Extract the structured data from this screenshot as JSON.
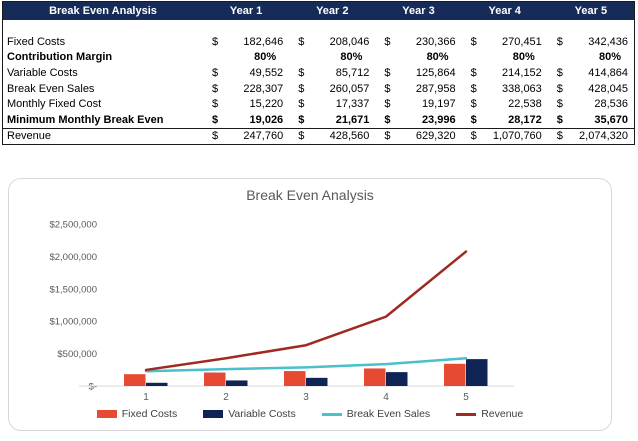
{
  "table": {
    "title": "Break Even Analysis",
    "columns": [
      "Year 1",
      "Year 2",
      "Year 3",
      "Year 4",
      "Year 5"
    ],
    "currency_symbol": "$",
    "rows": [
      {
        "label": "Fixed Costs",
        "format": "currency",
        "bold": false,
        "top_border": false,
        "values": [
          "182,646",
          "208,046",
          "230,366",
          "270,451",
          "342,436"
        ]
      },
      {
        "label": "Contribution Margin",
        "format": "percent",
        "bold": true,
        "top_border": false,
        "values": [
          "80%",
          "80%",
          "80%",
          "80%",
          "80%"
        ]
      },
      {
        "label": "Variable Costs",
        "format": "currency",
        "bold": false,
        "top_border": false,
        "values": [
          "49,552",
          "85,712",
          "125,864",
          "214,152",
          "414,864"
        ]
      },
      {
        "label": "Break Even Sales",
        "format": "currency",
        "bold": false,
        "top_border": false,
        "values": [
          "228,307",
          "260,057",
          "287,958",
          "338,063",
          "428,045"
        ]
      },
      {
        "label": "Monthly Fixed Cost",
        "format": "currency",
        "bold": false,
        "top_border": false,
        "values": [
          "15,220",
          "17,337",
          "19,197",
          "22,538",
          "28,536"
        ]
      },
      {
        "label": "Minimum Monthly Break Even",
        "format": "currency",
        "bold": true,
        "top_border": false,
        "values": [
          "19,026",
          "21,671",
          "23,996",
          "28,172",
          "35,670"
        ]
      },
      {
        "label": "Revenue",
        "format": "currency",
        "bold": false,
        "top_border": true,
        "values": [
          "247,760",
          "428,560",
          "629,320",
          "1,070,760",
          "2,074,320"
        ]
      }
    ]
  },
  "chart_data": {
    "type": "combo",
    "title": "Break Even Analysis",
    "categories": [
      "1",
      "2",
      "3",
      "4",
      "5"
    ],
    "series": [
      {
        "name": "Fixed Costs",
        "type": "bar",
        "color": "#E74A33",
        "values": [
          182646,
          208046,
          230366,
          270451,
          342436
        ]
      },
      {
        "name": "Variable Costs",
        "type": "bar",
        "color": "#0F2355",
        "values": [
          49552,
          85712,
          125864,
          214152,
          414864
        ]
      },
      {
        "name": "Break Even Sales",
        "type": "line",
        "color": "#49C0CB",
        "values": [
          228307,
          260057,
          287958,
          338063,
          428045
        ]
      },
      {
        "name": "Revenue",
        "type": "line",
        "color": "#A02A21",
        "values": [
          247760,
          428560,
          629320,
          1070760,
          2074320
        ]
      }
    ],
    "y_axis": {
      "min": 0,
      "max": 2500000,
      "step": 500000,
      "tick_labels": [
        "$-",
        "$500,000",
        "$1,000,000",
        "$1,500,000",
        "$2,000,000",
        "$2,500,000"
      ]
    },
    "xlabel": "",
    "ylabel": "",
    "grid": false,
    "legend_position": "bottom"
  },
  "colors": {
    "table_header_bg": "#162B58",
    "table_header_text": "#ffffff",
    "table_border": "#1a1a1a",
    "card_border": "#d8d8d8",
    "axis_line": "#d9d9d9",
    "axis_text": "#595959",
    "chart_title": "#595959"
  }
}
